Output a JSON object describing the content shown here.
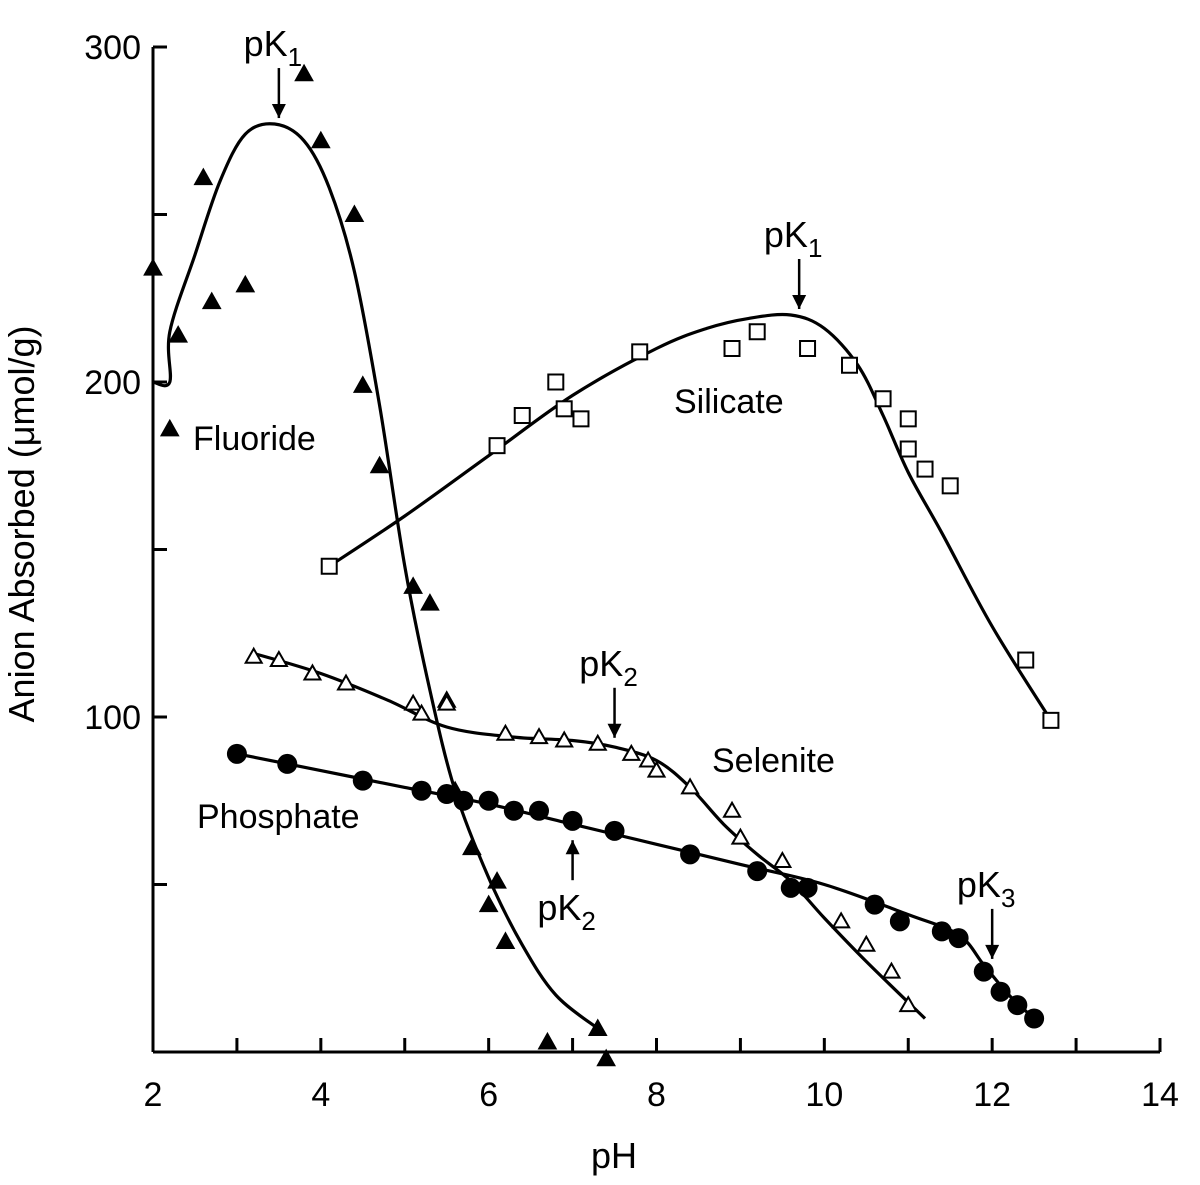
{
  "chart_data": {
    "type": "scatter",
    "title": "",
    "xlabel": "pH",
    "ylabel": "Anion Absorbed (μmol/g)",
    "xlim": [
      2,
      14
    ],
    "ylim": [
      0,
      300
    ],
    "x_ticks": [
      2,
      4,
      6,
      8,
      10,
      12,
      14
    ],
    "x_minor_ticks": [
      3,
      5,
      7,
      9,
      11,
      13
    ],
    "y_ticks": [
      100,
      200,
      300
    ],
    "y_minor_ticks": [
      50,
      150,
      250
    ],
    "grid": false,
    "legend": "none",
    "series": [
      {
        "name": "Fluoride",
        "marker": "filled-triangle",
        "points": [
          [
            2.0,
            234
          ],
          [
            2.2,
            186
          ],
          [
            2.3,
            214
          ],
          [
            2.6,
            261
          ],
          [
            2.7,
            224
          ],
          [
            3.1,
            229
          ],
          [
            3.8,
            292
          ],
          [
            4.0,
            272
          ],
          [
            4.4,
            250
          ],
          [
            4.5,
            199
          ],
          [
            4.7,
            175
          ],
          [
            5.1,
            139
          ],
          [
            5.3,
            134
          ],
          [
            5.5,
            105
          ],
          [
            5.6,
            78
          ],
          [
            5.8,
            61
          ],
          [
            6.0,
            44
          ],
          [
            6.1,
            51
          ],
          [
            6.2,
            33
          ],
          [
            6.7,
            3
          ],
          [
            7.3,
            7
          ],
          [
            7.4,
            -2
          ]
        ],
        "curve": [
          [
            2.0,
            200
          ],
          [
            2.2,
            200
          ],
          [
            2.2,
            215
          ],
          [
            2.5,
            238
          ],
          [
            2.8,
            260
          ],
          [
            3.1,
            274
          ],
          [
            3.45,
            277
          ],
          [
            3.8,
            272
          ],
          [
            4.1,
            258
          ],
          [
            4.4,
            233
          ],
          [
            4.7,
            193
          ],
          [
            5.0,
            145
          ],
          [
            5.3,
            108
          ],
          [
            5.6,
            78
          ],
          [
            6.0,
            52
          ],
          [
            6.4,
            32
          ],
          [
            6.8,
            17
          ],
          [
            7.3,
            7
          ]
        ]
      },
      {
        "name": "Silicate",
        "marker": "open-square",
        "points": [
          [
            4.1,
            145
          ],
          [
            6.1,
            181
          ],
          [
            6.4,
            190
          ],
          [
            6.8,
            200
          ],
          [
            6.9,
            192
          ],
          [
            7.1,
            189
          ],
          [
            7.8,
            209
          ],
          [
            8.9,
            210
          ],
          [
            9.2,
            215
          ],
          [
            9.8,
            210
          ],
          [
            10.3,
            205
          ],
          [
            10.7,
            195
          ],
          [
            11.0,
            189
          ],
          [
            11.0,
            180
          ],
          [
            11.2,
            174
          ],
          [
            11.5,
            169
          ],
          [
            12.4,
            117
          ],
          [
            12.7,
            99
          ]
        ],
        "curve": [
          [
            4.1,
            145
          ],
          [
            5.0,
            160
          ],
          [
            6.0,
            178
          ],
          [
            7.0,
            196
          ],
          [
            8.0,
            210
          ],
          [
            8.6,
            216
          ],
          [
            9.1,
            219
          ],
          [
            9.6,
            220
          ],
          [
            10.0,
            216
          ],
          [
            10.4,
            205
          ],
          [
            10.7,
            190
          ],
          [
            11.0,
            173
          ],
          [
            11.4,
            155
          ],
          [
            12.0,
            127
          ],
          [
            12.7,
            99
          ]
        ]
      },
      {
        "name": "Selenite",
        "marker": "open-triangle",
        "points": [
          [
            3.2,
            118
          ],
          [
            3.5,
            117
          ],
          [
            3.9,
            113
          ],
          [
            4.3,
            110
          ],
          [
            5.1,
            104
          ],
          [
            5.2,
            101
          ],
          [
            5.5,
            104
          ],
          [
            6.2,
            95
          ],
          [
            6.6,
            94
          ],
          [
            6.9,
            93
          ],
          [
            7.3,
            92
          ],
          [
            7.7,
            89
          ],
          [
            7.9,
            87
          ],
          [
            8.0,
            84
          ],
          [
            8.4,
            79
          ],
          [
            8.9,
            72
          ],
          [
            9.0,
            64
          ],
          [
            9.5,
            57
          ],
          [
            10.2,
            39
          ],
          [
            10.5,
            32
          ],
          [
            10.8,
            24
          ],
          [
            11.0,
            14
          ]
        ],
        "curve": [
          [
            3.2,
            119
          ],
          [
            4.0,
            113
          ],
          [
            4.8,
            105
          ],
          [
            5.5,
            97
          ],
          [
            6.3,
            94
          ],
          [
            7.0,
            93
          ],
          [
            7.5,
            91
          ],
          [
            8.0,
            87
          ],
          [
            8.4,
            79
          ],
          [
            8.8,
            68
          ],
          [
            9.2,
            59
          ],
          [
            9.6,
            51
          ],
          [
            10.0,
            40
          ],
          [
            10.5,
            27
          ],
          [
            11.2,
            10
          ]
        ]
      },
      {
        "name": "Phosphate",
        "marker": "filled-circle",
        "points": [
          [
            3.0,
            89
          ],
          [
            3.6,
            86
          ],
          [
            4.5,
            81
          ],
          [
            5.2,
            78
          ],
          [
            5.5,
            77
          ],
          [
            5.7,
            75
          ],
          [
            6.0,
            75
          ],
          [
            6.3,
            72
          ],
          [
            6.6,
            72
          ],
          [
            7.0,
            69
          ],
          [
            7.5,
            66
          ],
          [
            8.4,
            59
          ],
          [
            9.2,
            54
          ],
          [
            9.6,
            49
          ],
          [
            9.8,
            49
          ],
          [
            10.6,
            44
          ],
          [
            10.9,
            39
          ],
          [
            11.4,
            36
          ],
          [
            11.6,
            34
          ],
          [
            11.9,
            24
          ],
          [
            12.1,
            18
          ],
          [
            12.3,
            14
          ],
          [
            12.5,
            10
          ]
        ],
        "curve": [
          [
            3.0,
            89
          ],
          [
            4.0,
            84
          ],
          [
            5.0,
            79
          ],
          [
            6.0,
            74
          ],
          [
            7.0,
            68
          ],
          [
            8.0,
            62
          ],
          [
            9.0,
            56
          ],
          [
            10.0,
            50
          ],
          [
            11.0,
            41
          ],
          [
            11.6,
            35
          ],
          [
            11.9,
            26
          ],
          [
            12.2,
            17
          ],
          [
            12.5,
            10
          ]
        ]
      }
    ],
    "annotations": [
      {
        "text": "pK",
        "sub": "1",
        "series": "Fluoride",
        "x": 3.5,
        "y": 277,
        "arrow": "down"
      },
      {
        "text": "pK",
        "sub": "1",
        "series": "Silicate",
        "x": 9.7,
        "y": 220,
        "arrow": "down"
      },
      {
        "text": "pK",
        "sub": "2",
        "series": "Selenite",
        "x": 7.5,
        "y": 92,
        "arrow": "down"
      },
      {
        "text": "pK",
        "sub": "2",
        "series": "Phosphate",
        "x": 7.0,
        "y": 68,
        "arrow": "up"
      },
      {
        "text": "pK",
        "sub": "3",
        "series": "Phosphate",
        "x": 12.0,
        "y": 26,
        "arrow": "down"
      }
    ]
  }
}
